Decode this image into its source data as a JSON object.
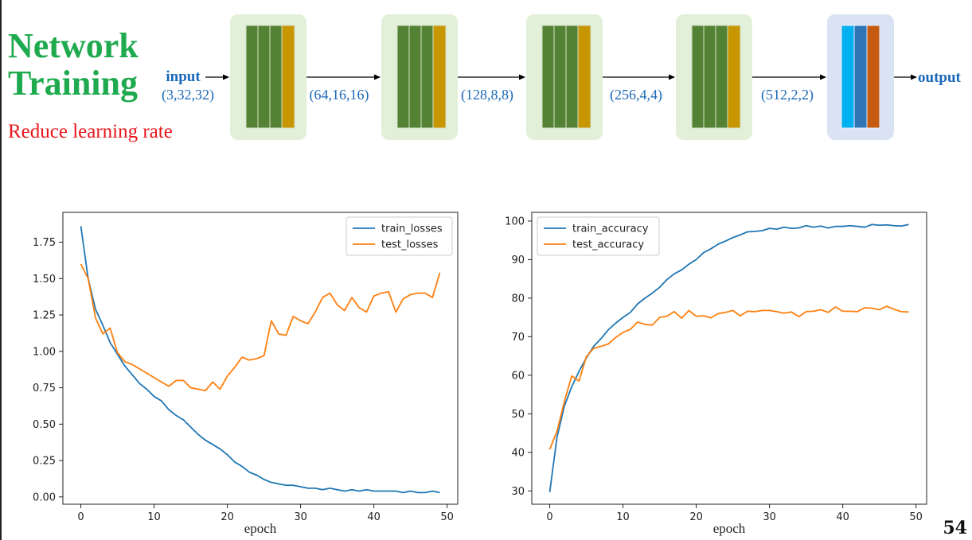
{
  "slide": {
    "title": "Network\nTraining",
    "subtitle": "Reduce learning rate",
    "page_number": "54"
  },
  "network": {
    "input_label": "input",
    "output_label": "output",
    "shapes": [
      "(3,32,32)",
      "(64,16,16)",
      "(128,8,8)",
      "(256,4,4)",
      "(512,2,2)"
    ],
    "colors": {
      "conv_block_bg": "#e2efd9",
      "conv_layer": "#548235",
      "conv_pool": "#c89600",
      "fc_block_bg": "#dae3f3",
      "fc_layer1": "#00b0f0",
      "fc_layer2": "#2e75b6",
      "fc_layer3": "#c55a11",
      "text": "#1a68b8"
    }
  },
  "chart_data": [
    {
      "type": "line",
      "xlabel": "epoch",
      "ylabel": "",
      "xlim": [
        -2.45,
        51.45
      ],
      "ylim": [
        -0.05,
        1.955
      ],
      "xticks": [
        0,
        10,
        20,
        30,
        40,
        50
      ],
      "yticks": [
        0.0,
        0.25,
        0.5,
        0.75,
        1.0,
        1.25,
        1.5,
        1.75
      ],
      "ytick_labels": [
        "0.00",
        "0.25",
        "0.50",
        "0.75",
        "1.00",
        "1.25",
        "1.50",
        "1.75"
      ],
      "legend_position": "top-right",
      "x": [
        0,
        1,
        2,
        3,
        4,
        5,
        6,
        7,
        8,
        9,
        10,
        11,
        12,
        13,
        14,
        15,
        16,
        17,
        18,
        19,
        20,
        21,
        22,
        23,
        24,
        25,
        26,
        27,
        28,
        29,
        30,
        31,
        32,
        33,
        34,
        35,
        36,
        37,
        38,
        39,
        40,
        41,
        42,
        43,
        44,
        45,
        46,
        47,
        48,
        49
      ],
      "series": [
        {
          "name": "train_losses",
          "color": "#1f77b4",
          "values": [
            1.86,
            1.5,
            1.29,
            1.18,
            1.06,
            0.98,
            0.9,
            0.84,
            0.78,
            0.74,
            0.69,
            0.66,
            0.6,
            0.56,
            0.53,
            0.48,
            0.43,
            0.39,
            0.36,
            0.33,
            0.29,
            0.24,
            0.21,
            0.17,
            0.15,
            0.12,
            0.1,
            0.09,
            0.08,
            0.08,
            0.07,
            0.06,
            0.06,
            0.05,
            0.06,
            0.05,
            0.04,
            0.05,
            0.04,
            0.05,
            0.04,
            0.04,
            0.04,
            0.04,
            0.03,
            0.04,
            0.03,
            0.03,
            0.04,
            0.03
          ]
        },
        {
          "name": "test_losses",
          "color": "#ff7f0e",
          "values": [
            1.6,
            1.5,
            1.23,
            1.12,
            1.16,
            0.99,
            0.93,
            0.91,
            0.88,
            0.85,
            0.82,
            0.79,
            0.76,
            0.8,
            0.8,
            0.75,
            0.74,
            0.73,
            0.79,
            0.74,
            0.83,
            0.89,
            0.96,
            0.94,
            0.95,
            0.97,
            1.21,
            1.12,
            1.11,
            1.24,
            1.21,
            1.19,
            1.27,
            1.37,
            1.4,
            1.32,
            1.28,
            1.37,
            1.3,
            1.27,
            1.38,
            1.4,
            1.41,
            1.27,
            1.36,
            1.39,
            1.4,
            1.4,
            1.37,
            1.54
          ]
        }
      ]
    },
    {
      "type": "line",
      "xlabel": "epoch",
      "ylabel": "",
      "xlim": [
        -2.45,
        51.45
      ],
      "ylim": [
        26.55,
        102.25
      ],
      "xticks": [
        0,
        10,
        20,
        30,
        40,
        50
      ],
      "yticks": [
        30,
        40,
        50,
        60,
        70,
        80,
        90,
        100
      ],
      "ytick_labels": [
        "30",
        "40",
        "50",
        "60",
        "70",
        "80",
        "90",
        "100"
      ],
      "legend_position": "top-left",
      "x": [
        0,
        1,
        2,
        3,
        4,
        5,
        6,
        7,
        8,
        9,
        10,
        11,
        12,
        13,
        14,
        15,
        16,
        17,
        18,
        19,
        20,
        21,
        22,
        23,
        24,
        25,
        26,
        27,
        28,
        29,
        30,
        31,
        32,
        33,
        34,
        35,
        36,
        37,
        38,
        39,
        40,
        41,
        42,
        43,
        44,
        45,
        46,
        47,
        48,
        49
      ],
      "series": [
        {
          "name": "train_accuracy",
          "color": "#1f77b4",
          "values": [
            29.7,
            44.0,
            52.0,
            57.0,
            61.0,
            64.5,
            67.5,
            69.5,
            71.8,
            73.5,
            75.0,
            76.3,
            78.5,
            80.0,
            81.3,
            82.8,
            84.8,
            86.3,
            87.3,
            88.8,
            90.0,
            91.8,
            92.8,
            94.0,
            94.8,
            95.7,
            96.4,
            97.2,
            97.3,
            97.5,
            98.1,
            97.9,
            98.4,
            98.1,
            98.2,
            98.8,
            98.4,
            98.7,
            98.2,
            98.6,
            98.6,
            98.8,
            98.6,
            98.4,
            99.1,
            98.9,
            99.0,
            98.8,
            98.7,
            99.1
          ]
        },
        {
          "name": "test_accuracy",
          "color": "#ff7f0e",
          "values": [
            40.8,
            45.5,
            53.2,
            59.8,
            58.5,
            64.8,
            67.0,
            67.5,
            68.1,
            69.8,
            71.1,
            71.9,
            73.8,
            73.2,
            73.0,
            75.0,
            75.3,
            76.5,
            74.8,
            76.8,
            75.3,
            75.4,
            74.9,
            76.0,
            76.3,
            76.8,
            75.4,
            76.6,
            76.5,
            76.8,
            76.8,
            76.5,
            76.1,
            76.4,
            75.2,
            76.5,
            76.6,
            77.0,
            76.3,
            77.7,
            76.6,
            76.6,
            76.5,
            77.5,
            77.4,
            77.0,
            77.9,
            77.1,
            76.5,
            76.4
          ]
        }
      ]
    }
  ]
}
